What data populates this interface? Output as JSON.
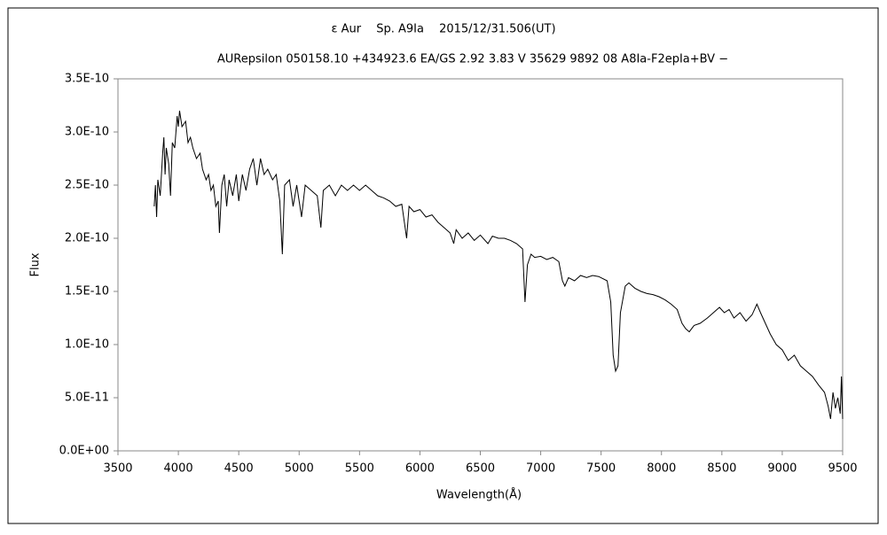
{
  "chart_data": {
    "type": "line",
    "title": "ε  Aur　 Sp. A9Ia　 2015/12/31.506(UT)",
    "subtitle": "AURepsilon 050158.10 +434923.6 EA/GS 2.92 3.83 V 35629 9892 08 A8Ia-F2epIa+BV −",
    "x_label": "Wavelength(Å)",
    "y_label": "Flux",
    "color": "#000000",
    "xlim": [
      3500,
      9500
    ],
    "xticks": [
      3500,
      4000,
      4500,
      5000,
      5500,
      6000,
      6500,
      7000,
      7500,
      8000,
      8500,
      9000,
      9500
    ],
    "ylim": [
      0,
      3.5e-10
    ],
    "yticks": [
      {
        "value": 0,
        "label": "0.0E+00"
      },
      {
        "value": 5e-11,
        "label": "5.0E-11"
      },
      {
        "value": 1e-10,
        "label": "1.0E-10"
      },
      {
        "value": 1.5e-10,
        "label": "1.5E-10"
      },
      {
        "value": 2e-10,
        "label": "2.0E-10"
      },
      {
        "value": 2.5e-10,
        "label": "2.5E-10"
      },
      {
        "value": 3e-10,
        "label": "3.0E-10"
      },
      {
        "value": 3.5e-10,
        "label": "3.5E-10"
      }
    ],
    "x": [
      3800,
      3810,
      3820,
      3830,
      3850,
      3870,
      3880,
      3890,
      3900,
      3920,
      3935,
      3950,
      3970,
      3990,
      4000,
      4010,
      4030,
      4060,
      4080,
      4100,
      4120,
      4150,
      4180,
      4200,
      4230,
      4250,
      4270,
      4290,
      4310,
      4330,
      4340,
      4360,
      4380,
      4400,
      4420,
      4450,
      4480,
      4500,
      4530,
      4560,
      4590,
      4620,
      4650,
      4680,
      4710,
      4740,
      4780,
      4810,
      4840,
      4861,
      4880,
      4920,
      4950,
      4980,
      5020,
      5050,
      5100,
      5150,
      5180,
      5200,
      5250,
      5300,
      5350,
      5400,
      5450,
      5500,
      5550,
      5600,
      5650,
      5700,
      5750,
      5800,
      5850,
      5890,
      5910,
      5950,
      6000,
      6050,
      6100,
      6150,
      6200,
      6250,
      6280,
      6300,
      6350,
      6400,
      6450,
      6500,
      6563,
      6600,
      6650,
      6700,
      6750,
      6800,
      6850,
      6870,
      6890,
      6920,
      6950,
      7000,
      7050,
      7100,
      7150,
      7180,
      7200,
      7230,
      7280,
      7330,
      7380,
      7430,
      7480,
      7550,
      7580,
      7600,
      7620,
      7640,
      7660,
      7700,
      7730,
      7780,
      7830,
      7880,
      7930,
      7980,
      8030,
      8080,
      8130,
      8170,
      8200,
      8230,
      8270,
      8320,
      8380,
      8430,
      8480,
      8520,
      8560,
      8600,
      8650,
      8700,
      8750,
      8790,
      8820,
      8860,
      8900,
      8950,
      9000,
      9050,
      9100,
      9150,
      9200,
      9250,
      9300,
      9350,
      9380,
      9400,
      9420,
      9440,
      9460,
      9480,
      9490,
      9500
    ],
    "values": [
      2.3e-10,
      2.5e-10,
      2.2e-10,
      2.55e-10,
      2.4e-10,
      2.8e-10,
      2.95e-10,
      2.6e-10,
      2.85e-10,
      2.7e-10,
      2.4e-10,
      2.9e-10,
      2.85e-10,
      3.15e-10,
      3.05e-10,
      3.2e-10,
      3.05e-10,
      3.1e-10,
      2.9e-10,
      2.95e-10,
      2.85e-10,
      2.75e-10,
      2.8e-10,
      2.65e-10,
      2.55e-10,
      2.6e-10,
      2.45e-10,
      2.5e-10,
      2.3e-10,
      2.35e-10,
      2.05e-10,
      2.5e-10,
      2.6e-10,
      2.3e-10,
      2.55e-10,
      2.4e-10,
      2.6e-10,
      2.35e-10,
      2.6e-10,
      2.45e-10,
      2.65e-10,
      2.75e-10,
      2.5e-10,
      2.75e-10,
      2.6e-10,
      2.65e-10,
      2.55e-10,
      2.6e-10,
      2.35e-10,
      1.85e-10,
      2.5e-10,
      2.55e-10,
      2.3e-10,
      2.5e-10,
      2.2e-10,
      2.5e-10,
      2.45e-10,
      2.4e-10,
      2.1e-10,
      2.45e-10,
      2.5e-10,
      2.4e-10,
      2.5e-10,
      2.45e-10,
      2.5e-10,
      2.45e-10,
      2.5e-10,
      2.45e-10,
      2.4e-10,
      2.38e-10,
      2.35e-10,
      2.3e-10,
      2.32e-10,
      2e-10,
      2.3e-10,
      2.25e-10,
      2.27e-10,
      2.2e-10,
      2.22e-10,
      2.15e-10,
      2.1e-10,
      2.05e-10,
      1.95e-10,
      2.08e-10,
      2e-10,
      2.05e-10,
      1.98e-10,
      2.03e-10,
      1.95e-10,
      2.02e-10,
      2e-10,
      2e-10,
      1.98e-10,
      1.95e-10,
      1.9e-10,
      1.4e-10,
      1.75e-10,
      1.85e-10,
      1.82e-10,
      1.83e-10,
      1.8e-10,
      1.82e-10,
      1.78e-10,
      1.6e-10,
      1.55e-10,
      1.63e-10,
      1.6e-10,
      1.65e-10,
      1.63e-10,
      1.65e-10,
      1.64e-10,
      1.6e-10,
      1.4e-10,
      9e-11,
      7.5e-11,
      8e-11,
      1.3e-10,
      1.55e-10,
      1.58e-10,
      1.53e-10,
      1.5e-10,
      1.48e-10,
      1.47e-10,
      1.45e-10,
      1.42e-10,
      1.38e-10,
      1.33e-10,
      1.2e-10,
      1.15e-10,
      1.12e-10,
      1.18e-10,
      1.2e-10,
      1.25e-10,
      1.3e-10,
      1.35e-10,
      1.3e-10,
      1.33e-10,
      1.25e-10,
      1.3e-10,
      1.22e-10,
      1.28e-10,
      1.38e-10,
      1.3e-10,
      1.2e-10,
      1.1e-10,
      1e-10,
      9.5e-11,
      8.5e-11,
      9e-11,
      8e-11,
      7.5e-11,
      7e-11,
      6.2e-11,
      5.5e-11,
      4.2e-11,
      3e-11,
      5.5e-11,
      4e-11,
      5e-11,
      3.5e-11,
      7e-11,
      3e-11
    ]
  }
}
